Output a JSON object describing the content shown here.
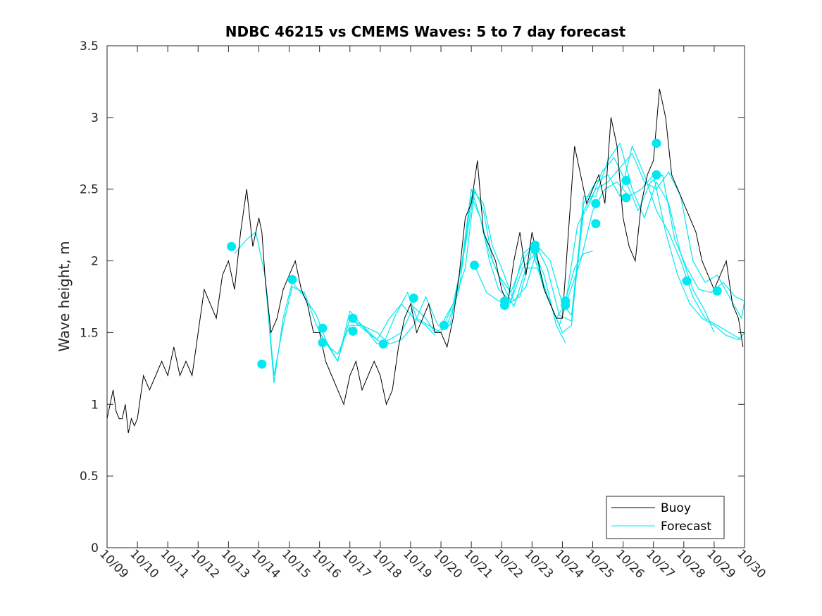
{
  "chart_data": {
    "type": "line",
    "title": "NDBC 46215 vs CMEMS Waves: 5 to 7 day forecast",
    "xlabel": "",
    "ylabel": "Wave height, m",
    "xlim": [
      0,
      21
    ],
    "ylim": [
      0,
      3.5
    ],
    "grid": false,
    "legend_position": "bottom-right",
    "x_tick_values": [
      0,
      1,
      2,
      3,
      4,
      5,
      6,
      7,
      8,
      9,
      10,
      11,
      12,
      13,
      14,
      15,
      16,
      17,
      18,
      19,
      20,
      21
    ],
    "x_tick_labels": [
      "10/09",
      "10/10",
      "10/11",
      "10/12",
      "10/13",
      "10/14",
      "10/15",
      "10/16",
      "10/17",
      "10/18",
      "10/19",
      "10/20",
      "10/21",
      "10/22",
      "10/23",
      "10/24",
      "10/25",
      "10/26",
      "10/27",
      "10/28",
      "10/29",
      "10/30"
    ],
    "y_tick_values": [
      0,
      0.5,
      1,
      1.5,
      2,
      2.5,
      3,
      3.5
    ],
    "y_tick_labels": [
      "0",
      "0.5",
      "1",
      "1.5",
      "2",
      "2.5",
      "3",
      "3.5"
    ],
    "series": [
      {
        "name": "Buoy",
        "color": "#000000",
        "x": [
          0,
          0.1,
          0.2,
          0.3,
          0.4,
          0.5,
          0.6,
          0.7,
          0.8,
          0.9,
          1,
          1.2,
          1.4,
          1.6,
          1.8,
          2,
          2.2,
          2.4,
          2.6,
          2.8,
          3,
          3.2,
          3.4,
          3.6,
          3.8,
          4,
          4.2,
          4.4,
          4.6,
          4.8,
          5,
          5.1,
          5.2,
          5.3,
          5.4,
          5.6,
          5.8,
          6,
          6.2,
          6.4,
          6.6,
          6.8,
          7,
          7.2,
          7.4,
          7.6,
          7.8,
          8,
          8.2,
          8.4,
          8.6,
          8.8,
          9,
          9.2,
          9.4,
          9.6,
          9.8,
          10,
          10.2,
          10.4,
          10.6,
          10.8,
          11,
          11.2,
          11.4,
          11.6,
          11.8,
          12,
          12.2,
          12.4,
          12.6,
          12.8,
          13,
          13.2,
          13.4,
          13.6,
          13.8,
          14,
          14.2,
          14.4,
          14.6,
          14.8,
          15,
          15.2,
          15.4,
          15.6,
          15.8,
          16,
          16.2,
          16.4,
          16.6,
          16.8,
          17,
          17.2,
          17.4,
          17.6,
          17.8,
          18,
          18.2,
          18.4,
          18.6,
          18.8,
          19,
          19.2,
          19.4,
          19.6,
          19.8,
          20,
          20.2,
          20.4,
          20.6,
          20.8,
          20.95
        ],
        "values": [
          0.9,
          1.0,
          1.1,
          0.95,
          0.9,
          0.9,
          1.0,
          0.8,
          0.9,
          0.85,
          0.9,
          1.2,
          1.1,
          1.2,
          1.3,
          1.2,
          1.4,
          1.2,
          1.3,
          1.2,
          1.5,
          1.8,
          1.7,
          1.6,
          1.9,
          2.0,
          1.8,
          2.2,
          2.5,
          2.1,
          2.3,
          2.2,
          1.9,
          1.7,
          1.5,
          1.6,
          1.8,
          1.9,
          2.0,
          1.8,
          1.7,
          1.5,
          1.5,
          1.3,
          1.2,
          1.1,
          1.0,
          1.2,
          1.3,
          1.1,
          1.2,
          1.3,
          1.2,
          1.0,
          1.1,
          1.4,
          1.6,
          1.7,
          1.5,
          1.6,
          1.7,
          1.5,
          1.5,
          1.4,
          1.6,
          1.9,
          2.3,
          2.4,
          2.7,
          2.2,
          2.1,
          2.0,
          1.8,
          1.7,
          2.0,
          2.2,
          1.9,
          2.2,
          2.0,
          1.8,
          1.7,
          1.6,
          1.6,
          2.2,
          2.8,
          2.6,
          2.4,
          2.5,
          2.6,
          2.4,
          3.0,
          2.8,
          2.3,
          2.1,
          2.0,
          2.4,
          2.6,
          2.7,
          3.2,
          3.0,
          2.6,
          2.5,
          2.4,
          2.3,
          2.2,
          2.0,
          1.9,
          1.8,
          1.9,
          2.0,
          1.7,
          1.6,
          1.4
        ]
      },
      {
        "name": "Forecast",
        "color": "#00e8f0",
        "runs": [
          {
            "x": [
              4.2,
              4.6,
              4.9,
              5.2,
              5.5,
              5.8,
              6.1,
              6.5,
              6.9,
              7.2,
              7.6,
              8.0,
              8.4,
              8.9,
              9.3,
              9.7,
              10.1,
              10.5,
              10.8
            ],
            "values": [
              2.05,
              2.15,
              2.2,
              1.9,
              1.2,
              1.55,
              1.82,
              1.78,
              1.55,
              1.42,
              1.35,
              1.55,
              1.55,
              1.45,
              1.6,
              1.7,
              1.6,
              1.55,
              1.48
            ]
          },
          {
            "x": [
              5.2,
              5.5,
              5.8,
              6.1,
              6.5,
              6.9,
              7.2,
              7.6,
              8.0,
              8.4,
              8.9,
              9.3,
              9.7,
              10.1,
              10.5,
              10.8,
              11.2,
              11.6,
              12.0,
              12.3,
              12.6,
              12.9,
              13.3,
              13.7,
              14.0,
              14.4,
              14.8,
              15.1
            ],
            "values": [
              1.9,
              1.15,
              1.6,
              1.85,
              1.75,
              1.62,
              1.45,
              1.3,
              1.65,
              1.55,
              1.42,
              1.45,
              1.5,
              1.68,
              1.6,
              1.5,
              1.55,
              1.8,
              2.45,
              2.3,
              2.05,
              1.9,
              1.78,
              2.0,
              2.1,
              1.9,
              1.55,
              1.43
            ]
          },
          {
            "x": [
              7.0,
              7.3,
              7.6,
              8.0,
              8.4,
              8.9,
              9.3,
              9.7,
              10.1,
              10.5,
              10.9,
              11.3,
              11.7,
              12.0,
              12.3,
              12.6,
              12.9,
              13.3,
              13.7,
              14.1,
              14.5,
              14.9,
              15.3,
              15.7,
              16.1,
              16.5,
              16.9,
              17.3,
              17.7,
              18.1,
              18.5,
              18.9,
              19.3,
              19.7,
              20.1,
              20.5,
              20.9,
              21.0
            ],
            "values": [
              1.5,
              1.4,
              1.3,
              1.6,
              1.55,
              1.5,
              1.42,
              1.45,
              1.55,
              1.75,
              1.55,
              1.55,
              2.0,
              2.5,
              2.3,
              2.0,
              1.8,
              1.72,
              2.05,
              2.12,
              1.95,
              1.62,
              1.58,
              2.35,
              2.5,
              2.55,
              2.65,
              2.75,
              2.55,
              2.5,
              2.62,
              2.45,
              2.0,
              1.85,
              1.9,
              1.75,
              1.6,
              1.72
            ]
          },
          {
            "x": [
              8.0,
              8.3,
              8.7,
              9.1,
              9.5,
              9.9,
              10.2,
              10.6,
              11.0,
              11.4,
              11.8,
              12.1,
              12.4,
              12.7,
              13.0,
              13.4,
              13.8,
              14.2,
              14.6,
              15.0,
              15.3,
              15.7,
              16.1,
              16.5,
              16.9,
              17.3,
              17.7,
              18.1,
              18.5,
              18.9,
              19.3,
              19.7,
              20.1,
              20.5,
              20.9
            ],
            "values": [
              1.6,
              1.55,
              1.48,
              1.42,
              1.62,
              1.78,
              1.6,
              1.55,
              1.5,
              1.7,
              1.95,
              2.48,
              2.4,
              2.1,
              1.95,
              1.72,
              1.82,
              2.1,
              2.0,
              1.7,
              1.62,
              2.4,
              2.55,
              2.6,
              2.45,
              2.8,
              2.6,
              2.35,
              2.2,
              2.0,
              1.75,
              1.6,
              1.55,
              1.5,
              1.45
            ]
          },
          {
            "x": [
              11.0,
              11.4,
              11.8,
              12.1,
              12.4,
              12.7,
              13.0,
              13.4,
              13.8,
              14.2,
              14.6,
              15.0,
              15.3,
              15.7,
              16.1,
              16.5,
              16.9,
              17.3,
              17.7,
              18.1,
              18.5,
              18.9,
              19.3,
              19.7,
              20.0
            ],
            "values": [
              1.55,
              1.7,
              2.1,
              2.5,
              2.35,
              2.0,
              1.85,
              1.68,
              1.95,
              1.95,
              1.7,
              1.5,
              1.55,
              2.45,
              2.45,
              2.7,
              2.82,
              2.5,
              2.3,
              2.55,
              2.4,
              2.05,
              1.8,
              1.65,
              1.5
            ]
          },
          {
            "x": [
              12.1,
              12.5,
              12.9,
              13.2,
              13.6,
              14.0,
              14.4,
              14.8,
              15.1,
              15.5,
              15.9,
              16.3,
              16.7,
              17.1,
              17.5,
              17.9,
              18.3,
              18.7,
              19.1,
              19.5,
              19.9,
              20.3,
              20.7,
              21.0
            ],
            "values": [
              1.97,
              1.78,
              1.72,
              1.7,
              1.75,
              2.08,
              1.8,
              1.6,
              1.7,
              2.25,
              2.4,
              2.62,
              2.72,
              2.55,
              2.35,
              2.55,
              2.6,
              2.15,
              1.95,
              1.8,
              1.78,
              1.85,
              1.75,
              1.72
            ]
          },
          {
            "x": [
              13.0,
              13.3,
              13.7,
              14.1,
              14.5,
              14.9,
              15.2,
              15.6,
              16.0,
              16.4,
              16.8,
              17.2,
              17.6,
              18.0,
              18.4,
              18.8,
              19.2,
              19.6,
              20.0,
              20.4,
              20.8,
              21.0
            ],
            "values": [
              1.68,
              1.72,
              1.95,
              2.05,
              1.75,
              1.55,
              1.75,
              2.0,
              2.35,
              2.5,
              2.55,
              2.45,
              2.5,
              2.6,
              2.2,
              1.9,
              1.7,
              1.6,
              1.55,
              1.48,
              1.45,
              1.5
            ]
          },
          {
            "x": [
              15.1,
              15.4,
              15.7,
              16.0
            ],
            "values": [
              1.72,
              1.95,
              2.05,
              2.07
            ]
          }
        ],
        "markers": {
          "x": [
            4.1,
            5.1,
            6.1,
            7.1,
            7.1,
            8.1,
            8.1,
            9.1,
            10.1,
            11.1,
            12.1,
            13.1,
            13.1,
            14.1,
            14.1,
            15.1,
            15.1,
            16.1,
            16.1,
            17.1,
            17.1,
            18.1,
            18.1,
            19.1,
            20.1
          ],
          "values": [
            2.1,
            1.28,
            1.87,
            1.53,
            1.43,
            1.6,
            1.51,
            1.42,
            1.74,
            1.55,
            1.97,
            1.72,
            1.69,
            2.11,
            2.08,
            1.72,
            1.69,
            2.26,
            2.4,
            2.56,
            2.44,
            2.82,
            2.6,
            1.86,
            1.79
          ]
        }
      }
    ]
  }
}
